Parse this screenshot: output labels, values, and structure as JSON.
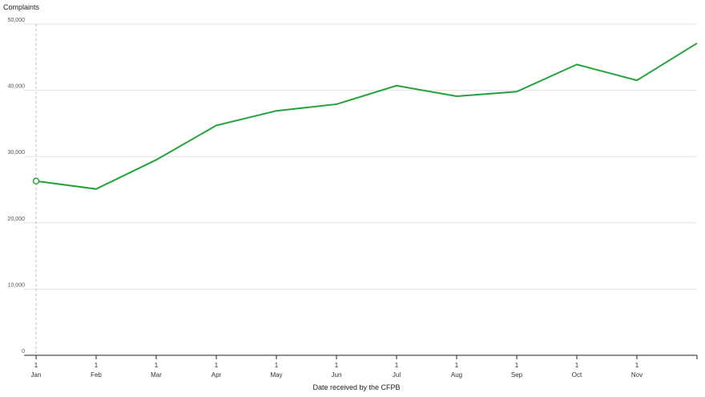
{
  "chart_data": {
    "type": "line",
    "y_label": "Complaints",
    "x_label": "Date received by the CFPB",
    "categories": [
      "1 Jan",
      "1 Feb",
      "1 Mar",
      "1 Apr",
      "1 May",
      "1 Jun",
      "1 Jul",
      "1 Aug",
      "1 Sep",
      "1 Oct",
      "1 Nov",
      null
    ],
    "series": [
      {
        "name": "Complaints",
        "color": "#22a33a",
        "values": [
          26300,
          25100,
          29500,
          34700,
          36900,
          37900,
          40700,
          39100,
          39800,
          43900,
          41500,
          47100
        ]
      }
    ],
    "ylim": [
      0,
      50000
    ],
    "yticks": [
      0,
      {
        "value": 10000,
        "label": "10,000"
      },
      {
        "value": 20000,
        "label": "20,000"
      },
      {
        "value": 30000,
        "label": "30,000"
      },
      {
        "value": 40000,
        "label": "40,000"
      },
      {
        "value": 50000,
        "label": "50,000"
      }
    ],
    "grid": true
  }
}
